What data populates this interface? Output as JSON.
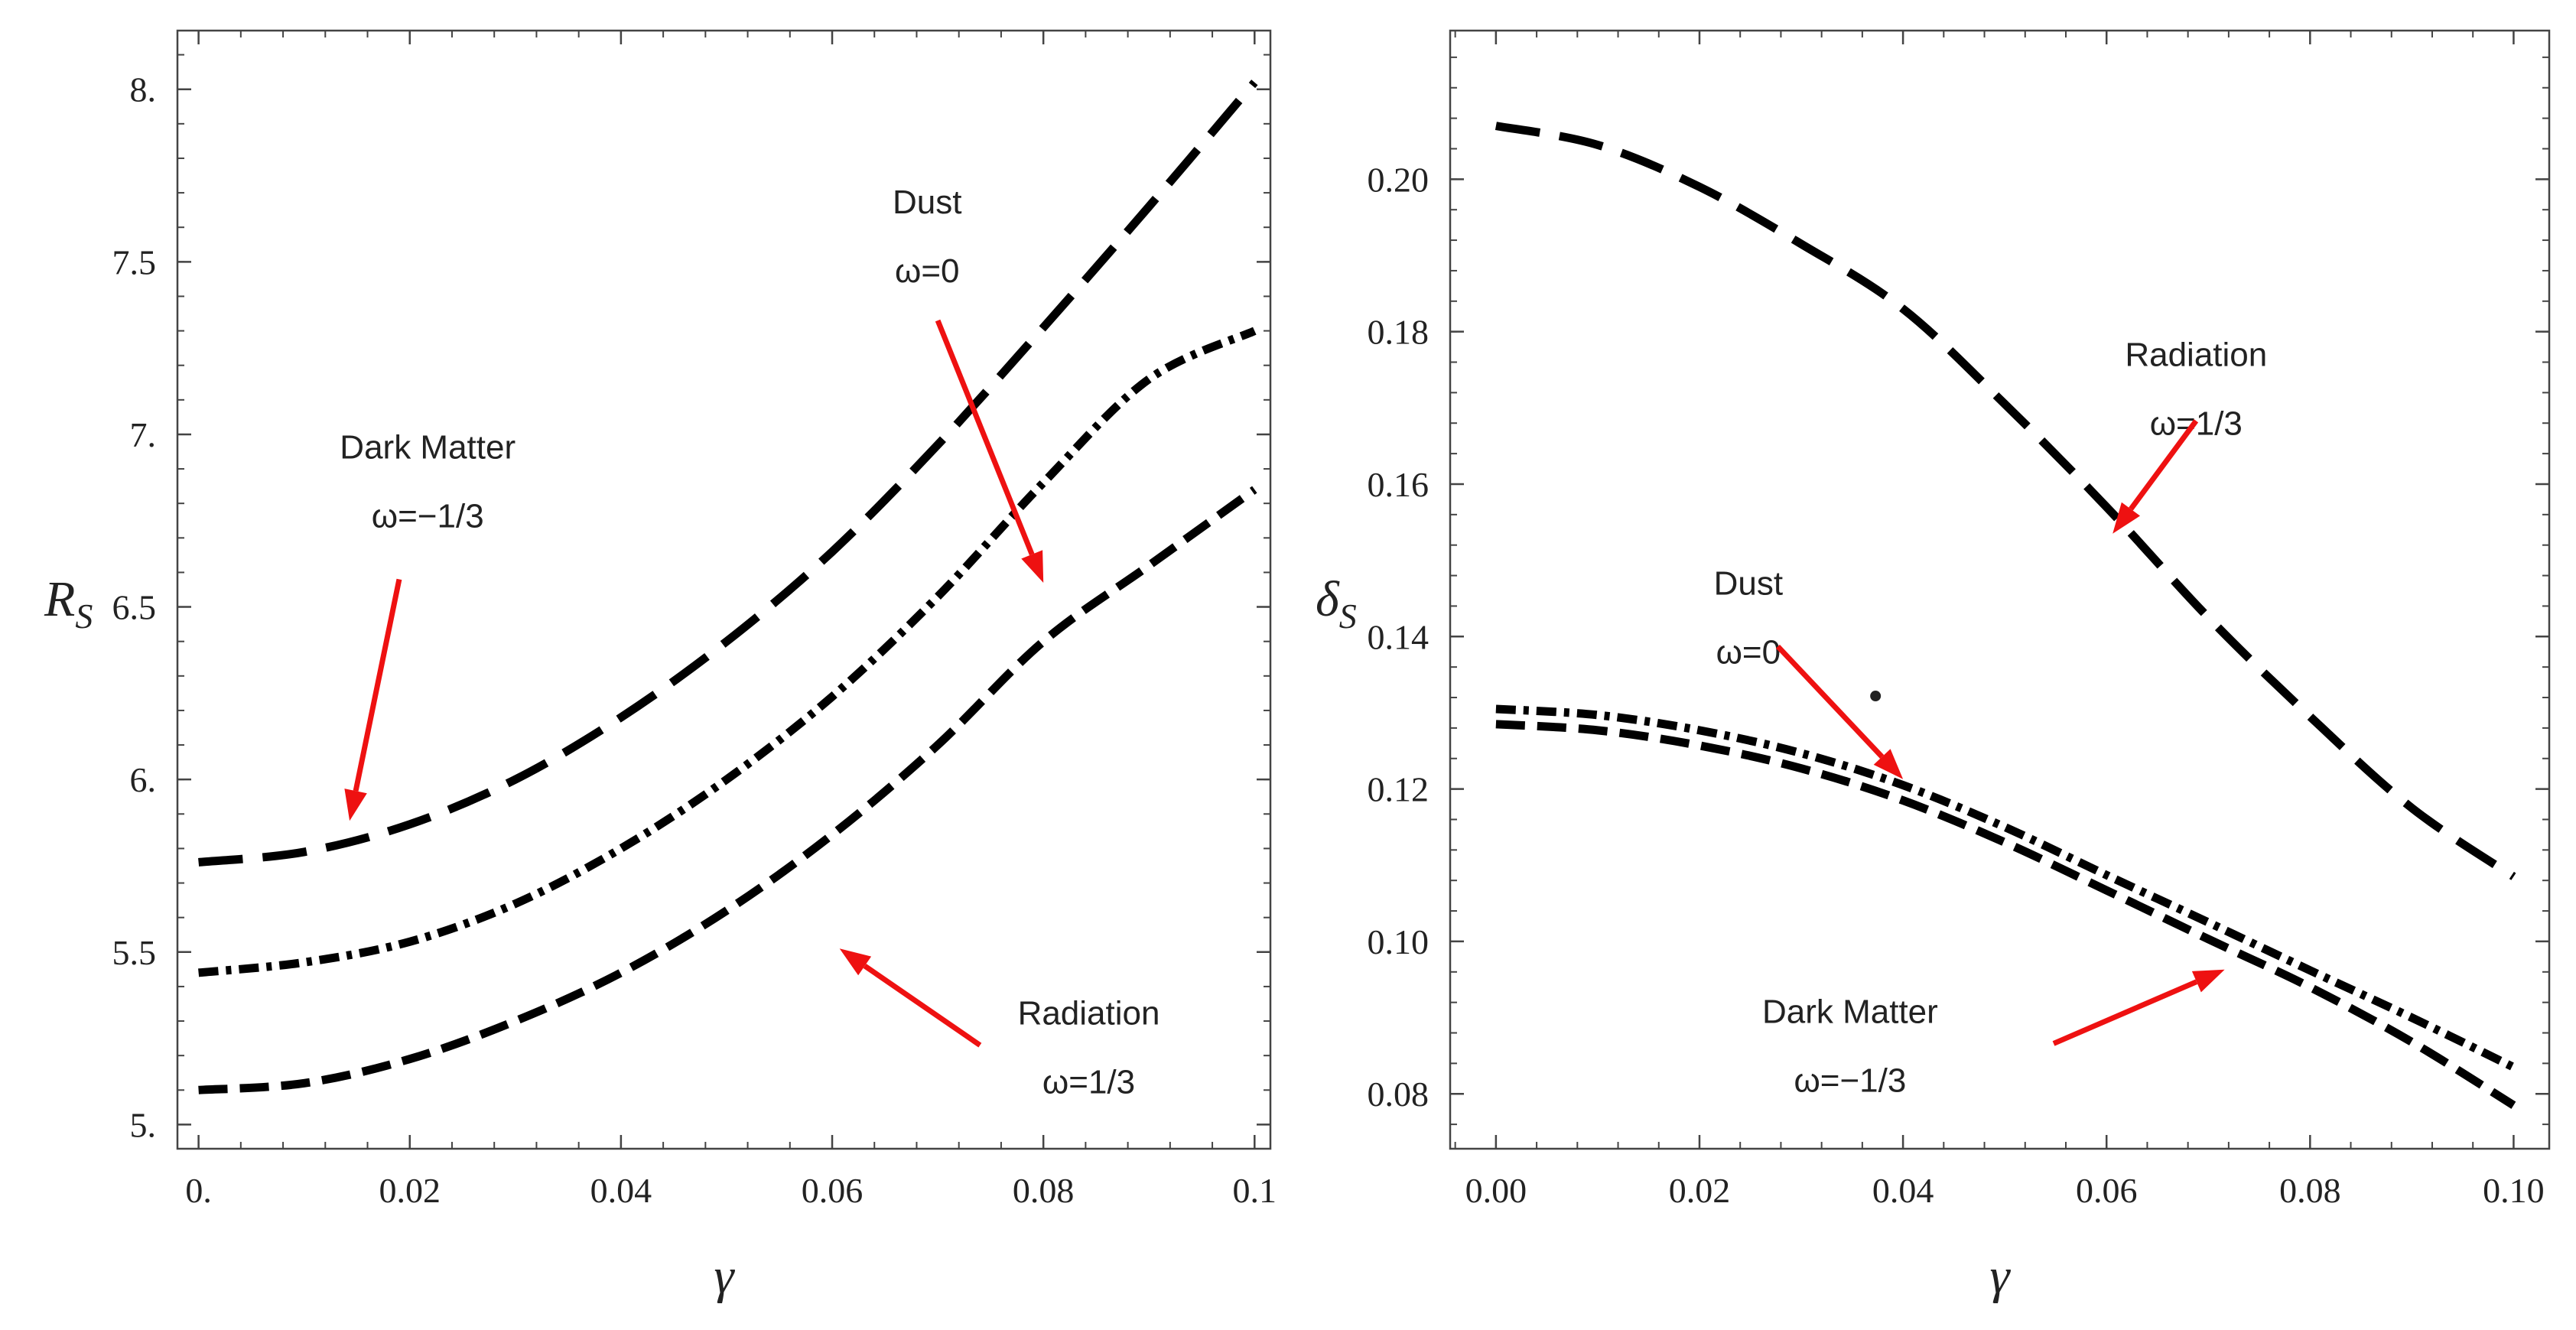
{
  "colors": {
    "curve": "#000000",
    "arrow": "#ee1111",
    "frame": "#444444"
  },
  "chart_data": [
    {
      "type": "line",
      "xlabel": "γ",
      "ylabel_main": "R",
      "ylabel_sub": "S",
      "xlim": [
        -0.002,
        0.1015
      ],
      "ylim": [
        4.93,
        8.17
      ],
      "x_ticks": [
        0,
        0.02,
        0.04,
        0.06,
        0.08,
        0.1
      ],
      "x_tick_labels": [
        "0.",
        "0.02",
        "0.04",
        "0.06",
        "0.08",
        "0.1"
      ],
      "y_ticks": [
        5,
        5.5,
        6,
        6.5,
        7,
        7.5,
        8
      ],
      "y_tick_labels": [
        "5.",
        "5.5",
        "6.",
        "6.5",
        "7.",
        "7.5",
        "8."
      ],
      "x": [
        0,
        0.01,
        0.02,
        0.03,
        0.04,
        0.05,
        0.06,
        0.07,
        0.08,
        0.09,
        0.1
      ],
      "series": [
        {
          "name": "Dark Matter",
          "style": "long-dash",
          "values": [
            5.76,
            5.79,
            5.87,
            6.0,
            6.18,
            6.4,
            6.66,
            6.97,
            7.31,
            7.66,
            8.02
          ]
        },
        {
          "name": "Dust",
          "style": "dash-dot",
          "values": [
            5.44,
            5.47,
            5.53,
            5.64,
            5.8,
            6.0,
            6.24,
            6.53,
            6.86,
            7.16,
            7.3
          ]
        },
        {
          "name": "Radiation",
          "style": "dash",
          "values": [
            5.1,
            5.12,
            5.19,
            5.3,
            5.44,
            5.62,
            5.84,
            6.1,
            6.4,
            6.62,
            6.84
          ]
        }
      ],
      "annotations": [
        {
          "line1": "Dust",
          "line2": "ω=0",
          "text_at": [
            0.069,
            7.64
          ],
          "arrow_from": [
            0.07,
            7.33
          ],
          "arrow_to": [
            0.08,
            6.57
          ]
        },
        {
          "line1": "Dark Matter",
          "line2": "ω=−1/3",
          "text_at": [
            0.0217,
            6.93
          ],
          "arrow_from": [
            0.019,
            6.58
          ],
          "arrow_to": [
            0.0143,
            5.88
          ]
        },
        {
          "line1": "Radiation",
          "line2": "ω=1/3",
          "text_at": [
            0.0843,
            5.29
          ],
          "arrow_from": [
            0.074,
            5.23
          ],
          "arrow_to": [
            0.0607,
            5.51
          ]
        }
      ]
    },
    {
      "type": "line",
      "xlabel": "γ",
      "ylabel_main": "δ",
      "ylabel_sub": "S",
      "xlim": [
        -0.0045,
        0.1035
      ],
      "ylim": [
        0.0728,
        0.2195
      ],
      "x_ticks": [
        0,
        0.02,
        0.04,
        0.06,
        0.08,
        0.1
      ],
      "x_tick_labels": [
        "0.00",
        "0.02",
        "0.04",
        "0.06",
        "0.08",
        "0.10"
      ],
      "y_ticks": [
        0.08,
        0.1,
        0.12,
        0.14,
        0.16,
        0.18,
        0.2
      ],
      "y_tick_labels": [
        "0.08",
        "0.10",
        "0.12",
        "0.14",
        "0.16",
        "0.18",
        "0.20"
      ],
      "x": [
        0,
        0.01,
        0.02,
        0.03,
        0.04,
        0.05,
        0.06,
        0.07,
        0.08,
        0.09,
        0.1
      ],
      "series": [
        {
          "name": "Radiation",
          "style": "long-dash",
          "values": [
            0.207,
            0.2045,
            0.199,
            0.1915,
            0.183,
            0.1705,
            0.157,
            0.1425,
            0.1295,
            0.1175,
            0.1085
          ]
        },
        {
          "name": "Dust",
          "style": "dash-dot",
          "values": [
            0.1305,
            0.1297,
            0.1277,
            0.1247,
            0.1205,
            0.115,
            0.1087,
            0.1025,
            0.0962,
            0.09,
            0.0835
          ]
        },
        {
          "name": "Dark Matter",
          "style": "dash",
          "values": [
            0.1285,
            0.1277,
            0.1257,
            0.1227,
            0.1185,
            0.113,
            0.1067,
            0.1003,
            0.094,
            0.0868,
            0.0785
          ]
        }
      ],
      "annotations": [
        {
          "line1": "Radiation",
          "line2": "ω=1/3",
          "text_at": [
            0.0688,
            0.1755
          ],
          "arrow_from": [
            0.0688,
            0.1683
          ],
          "arrow_to": [
            0.0606,
            0.1535
          ]
        },
        {
          "line1": "Dust",
          "line2": "ω=0",
          "text_at": [
            0.0248,
            0.1455
          ],
          "arrow_from": [
            0.0277,
            0.1387
          ],
          "arrow_to": [
            0.04,
            0.1213
          ]
        },
        {
          "line1": "Dark Matter",
          "line2": "ω=−1/3",
          "text_at": [
            0.0348,
            0.0893
          ],
          "arrow_from": [
            0.0548,
            0.0866
          ],
          "arrow_to": [
            0.0716,
            0.0963
          ]
        }
      ],
      "marker": [
        0.0373,
        0.1322
      ]
    }
  ]
}
